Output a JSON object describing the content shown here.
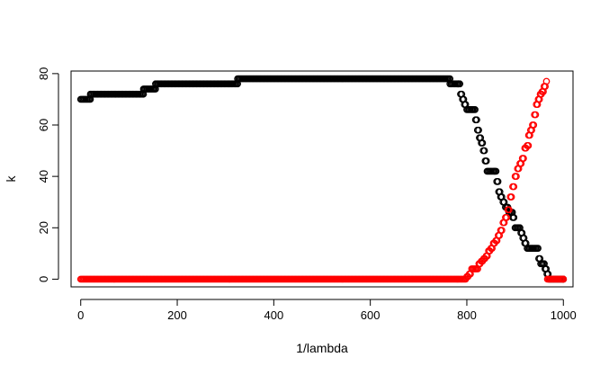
{
  "chart_data": {
    "type": "scatter",
    "title": "",
    "xlabel": "1/lambda",
    "ylabel": "k",
    "xlim": [
      -20,
      1020
    ],
    "ylim": [
      -3,
      81
    ],
    "xticks": [
      0,
      200,
      400,
      600,
      800,
      1000
    ],
    "yticks": [
      0,
      20,
      40,
      60,
      80
    ],
    "grid": false,
    "legend": "none",
    "series": [
      {
        "color": "#000000",
        "marker": "open-circle",
        "points": [
          [
            0,
            70
          ],
          [
            20,
            70
          ],
          [
            20,
            72
          ],
          [
            130,
            72
          ],
          [
            130,
            74
          ],
          [
            155,
            74
          ],
          [
            155,
            76
          ],
          [
            325,
            76
          ],
          [
            325,
            78
          ],
          [
            765,
            78
          ],
          [
            765,
            76
          ],
          [
            783,
            76
          ],
          [
            787,
            72
          ],
          [
            791,
            70
          ],
          [
            795,
            68
          ],
          [
            800,
            66
          ],
          [
            812,
            66
          ],
          [
            818,
            62
          ],
          [
            822,
            58
          ],
          [
            826,
            55
          ],
          [
            830,
            53
          ],
          [
            834,
            50
          ],
          [
            838,
            46
          ],
          [
            842,
            42
          ],
          [
            858,
            42
          ],
          [
            862,
            38
          ],
          [
            866,
            34
          ],
          [
            870,
            32
          ],
          [
            875,
            30
          ],
          [
            880,
            28
          ],
          [
            887,
            26
          ],
          [
            895,
            24
          ],
          [
            900,
            20
          ],
          [
            910,
            20
          ],
          [
            912,
            18
          ],
          [
            916,
            16
          ],
          [
            920,
            14
          ],
          [
            925,
            12
          ],
          [
            945,
            12
          ],
          [
            949,
            8
          ],
          [
            953,
            6
          ],
          [
            958,
            6
          ],
          [
            962,
            4
          ],
          [
            966,
            2
          ],
          [
            970,
            0
          ],
          [
            1000,
            0
          ]
        ]
      },
      {
        "color": "#ff0000",
        "marker": "open-circle",
        "points": [
          [
            0,
            0
          ],
          [
            795,
            0
          ],
          [
            800,
            1
          ],
          [
            805,
            2
          ],
          [
            810,
            4
          ],
          [
            820,
            4
          ],
          [
            825,
            6
          ],
          [
            830,
            7
          ],
          [
            835,
            8
          ],
          [
            840,
            9
          ],
          [
            845,
            11
          ],
          [
            850,
            12
          ],
          [
            855,
            14
          ],
          [
            860,
            15
          ],
          [
            865,
            17
          ],
          [
            870,
            19
          ],
          [
            875,
            22
          ],
          [
            880,
            24
          ],
          [
            885,
            27
          ],
          [
            890,
            32
          ],
          [
            895,
            36
          ],
          [
            900,
            40
          ],
          [
            905,
            43
          ],
          [
            910,
            45
          ],
          [
            915,
            47
          ],
          [
            920,
            51
          ],
          [
            925,
            52
          ],
          [
            928,
            56
          ],
          [
            932,
            58
          ],
          [
            936,
            60
          ],
          [
            940,
            64
          ],
          [
            944,
            68
          ],
          [
            948,
            70
          ],
          [
            952,
            72
          ],
          [
            956,
            73
          ],
          [
            960,
            75
          ],
          [
            965,
            77
          ],
          [
            967,
            0
          ],
          [
            1000,
            0
          ]
        ]
      }
    ]
  }
}
